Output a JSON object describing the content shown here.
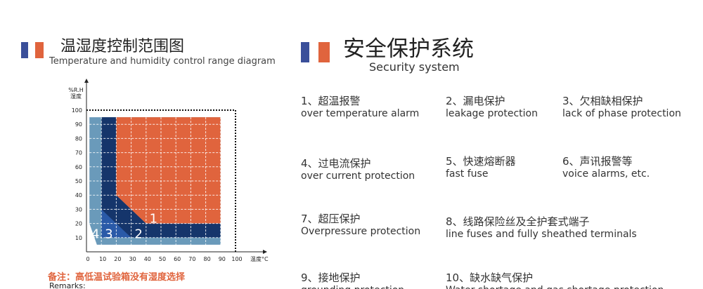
{
  "colors": {
    "blue": "#3a4f9a",
    "orange": "#e0643d",
    "navy": "#15356b",
    "mid_blue": "#2a5aa8",
    "light_blue": "#6a9aba",
    "note_red": "#e0643d"
  },
  "left": {
    "title_zh": "温湿度控制范围图",
    "title_en": "Temperature and humidity control range diagram",
    "note": "备注：高低温试验箱没有湿度选择",
    "remarks": "Remarks:"
  },
  "right": {
    "title_zh": "安全保护系统",
    "title_en": "Security system",
    "items": [
      {
        "zh": "1、超温报警",
        "en": "over temperature alarm"
      },
      {
        "zh": "2、漏电保护",
        "en": "leakage protection"
      },
      {
        "zh": "3、欠相缺相保护",
        "en": "lack of phase protection"
      },
      {
        "zh": "4、过电流保护",
        "en": "over current protection"
      },
      {
        "zh": "5、快速熔断器",
        "en": "fast fuse"
      },
      {
        "zh": "6、声讯报警等",
        "en": "voice alarms, etc."
      },
      {
        "zh": "7、超压保护",
        "en": "Overpressure protection"
      },
      {
        "zh": "8、线路保险丝及全护套式端子",
        "en": "line fuses and fully sheathed terminals"
      },
      {
        "zh": "9、接地保护",
        "en": "grounding protection"
      },
      {
        "zh": "10、缺水缺气保护",
        "en": "Water shortage and gas shortage protection"
      }
    ]
  },
  "chart_data": {
    "type": "area",
    "ylabel_line1": "%R.H",
    "ylabel_line2": "湿度",
    "xlabel": "温度°C",
    "x_ticks": [
      0,
      10,
      20,
      30,
      40,
      50,
      60,
      70,
      80,
      90,
      100
    ],
    "y_ticks": [
      10,
      20,
      30,
      40,
      50,
      60,
      70,
      80,
      90,
      100
    ],
    "xlim": [
      0,
      100
    ],
    "ylim": [
      0,
      100
    ],
    "regions": [
      {
        "label": "4",
        "color": "#6a9aba",
        "polygon": [
          [
            2,
            95
          ],
          [
            90,
            95
          ],
          [
            90,
            5
          ],
          [
            7,
            5
          ],
          [
            2,
            20
          ]
        ],
        "label_at": [
          6,
          13
        ]
      },
      {
        "label": "2",
        "color": "#15356b",
        "polygon": [
          [
            10,
            95
          ],
          [
            20,
            95
          ],
          [
            20,
            40
          ],
          [
            40,
            20
          ],
          [
            90,
            20
          ],
          [
            90,
            10
          ],
          [
            10,
            10
          ]
        ],
        "label_at": [
          35,
          13
        ]
      },
      {
        "label": "3",
        "color": "#2a5aa8",
        "polygon": [
          [
            10,
            30
          ],
          [
            10,
            10
          ],
          [
            30,
            10
          ]
        ],
        "label_at": [
          15,
          13
        ]
      },
      {
        "label": "1",
        "color": "#e0643d",
        "polygon": [
          [
            20,
            95
          ],
          [
            90,
            95
          ],
          [
            90,
            20
          ],
          [
            40,
            20
          ],
          [
            20,
            40
          ]
        ],
        "label_at": [
          45,
          24
        ]
      }
    ],
    "limit_box": [
      100,
      100
    ],
    "grid": true
  }
}
